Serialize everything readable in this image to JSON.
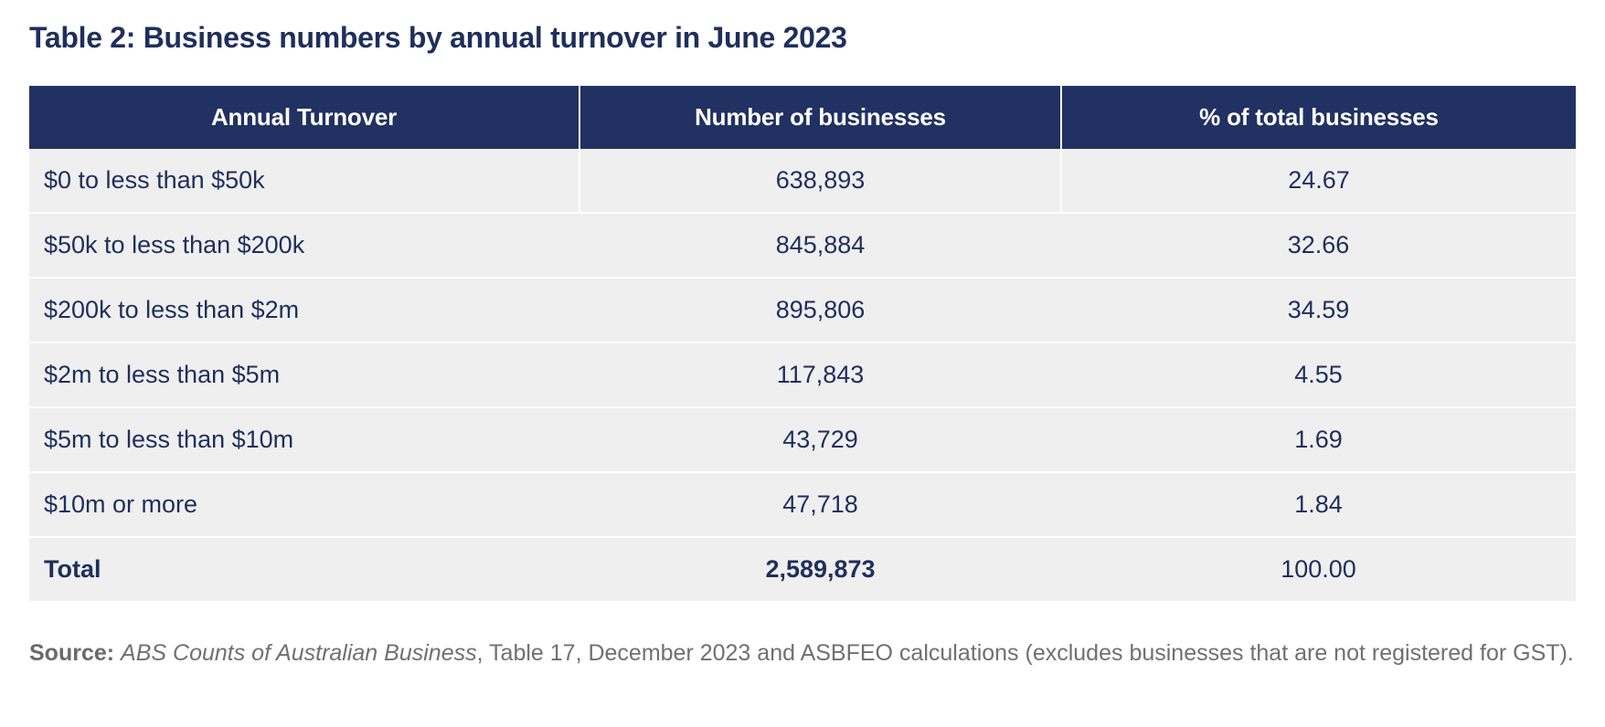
{
  "title": "Table 2: Business numbers by annual turnover in June 2023",
  "table": {
    "headers": [
      "Annual Turnover",
      "Number of businesses",
      "% of total businesses"
    ],
    "rows": [
      [
        "$0 to less than $50k",
        "638,893",
        "24.67"
      ],
      [
        "$50k to less than $200k",
        "845,884",
        "32.66"
      ],
      [
        "$200k to less than $2m",
        "895,806",
        "34.59"
      ],
      [
        "$2m to less than $5m",
        "117,843",
        "4.55"
      ],
      [
        "$5m to less than $10m",
        "43,729",
        "1.69"
      ],
      [
        "$10m or more",
        "47,718",
        "1.84"
      ]
    ],
    "total": [
      "Total",
      "2,589,873",
      "100.00"
    ]
  },
  "source": {
    "label": "Source:",
    "publication": "ABS Counts of Australian Business",
    "text": ", Table 17, December 2023 and ASBFEO calculations (excludes businesses that are not registered for GST)."
  },
  "colors": {
    "header_bg": "#213161",
    "header_text": "#ffffff",
    "row_bg": "#efefef",
    "body_text": "#1f2f5c",
    "source_text": "#707070"
  }
}
